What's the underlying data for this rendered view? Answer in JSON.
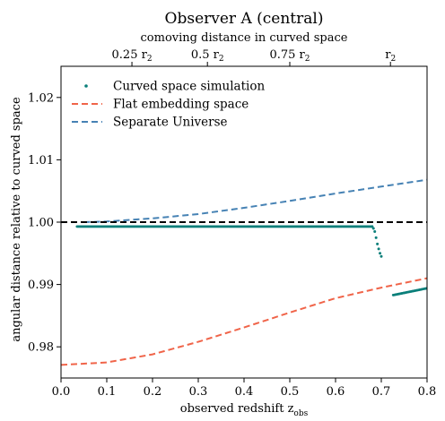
{
  "chart_data": {
    "type": "scatter",
    "title": "Observer A (central)",
    "top_axis_label": "comoving distance in curved space",
    "xlabel": "observed redshift z",
    "xlabel_sub": "obs",
    "ylabel": "angular distance relative to curved space",
    "xlim": [
      0.0,
      0.8
    ],
    "ylim": [
      0.975,
      1.025
    ],
    "x_ticks": [
      0.0,
      0.1,
      0.2,
      0.3,
      0.4,
      0.5,
      0.6,
      0.7,
      0.8
    ],
    "x_tick_labels": [
      "0.0",
      "0.1",
      "0.2",
      "0.3",
      "0.4",
      "0.5",
      "0.6",
      "0.7",
      "0.8"
    ],
    "y_ticks": [
      0.98,
      0.99,
      1.0,
      1.01,
      1.02
    ],
    "y_tick_labels": [
      "0.98",
      "0.99",
      "1.00",
      "1.01",
      "1.02"
    ],
    "top_ticks": [
      {
        "z": 0.155,
        "label": "0.25 r",
        "sub": "2"
      },
      {
        "z": 0.32,
        "label": "0.5 r",
        "sub": "2"
      },
      {
        "z": 0.5,
        "label": "0.75 r",
        "sub": "2"
      },
      {
        "z": 0.72,
        "label": "r",
        "sub": "2"
      }
    ],
    "reference_line": {
      "y": 1.0,
      "color": "#000000",
      "style": "dashed"
    },
    "legend_position": "top-left",
    "series": [
      {
        "name": "Curved space simulation",
        "kind": "scatter",
        "color": "#0b7f7a",
        "segments": [
          {
            "x_start": 0.035,
            "x_end": 0.68,
            "y_start": 0.9993,
            "y_end": 0.9993
          },
          {
            "x_start": 0.68,
            "x_end": 0.7,
            "y_values": [
              0.9993,
              0.999,
              0.9985,
              0.9975,
              0.9965,
              0.9957,
              0.995,
              0.9945
            ]
          },
          {
            "x_start": 0.726,
            "x_end": 0.8,
            "y_start": 0.9883,
            "y_end": 0.9894
          }
        ]
      },
      {
        "name": "Flat embedding space",
        "kind": "line",
        "color": "#f06449",
        "style": "dashed",
        "points": [
          [
            0.0,
            0.9771
          ],
          [
            0.1,
            0.9775
          ],
          [
            0.2,
            0.9788
          ],
          [
            0.3,
            0.9808
          ],
          [
            0.4,
            0.9831
          ],
          [
            0.5,
            0.9855
          ],
          [
            0.6,
            0.9878
          ],
          [
            0.7,
            0.9895
          ],
          [
            0.8,
            0.991
          ]
        ]
      },
      {
        "name": "Separate Universe",
        "kind": "line",
        "color": "#4682b4",
        "style": "dashed",
        "points": [
          [
            0.05,
            1.0
          ],
          [
            0.1,
            1.0001
          ],
          [
            0.2,
            1.0006
          ],
          [
            0.3,
            1.0013
          ],
          [
            0.4,
            1.0023
          ],
          [
            0.5,
            1.0034
          ],
          [
            0.6,
            1.0046
          ],
          [
            0.7,
            1.0057
          ],
          [
            0.8,
            1.0068
          ]
        ]
      }
    ]
  }
}
